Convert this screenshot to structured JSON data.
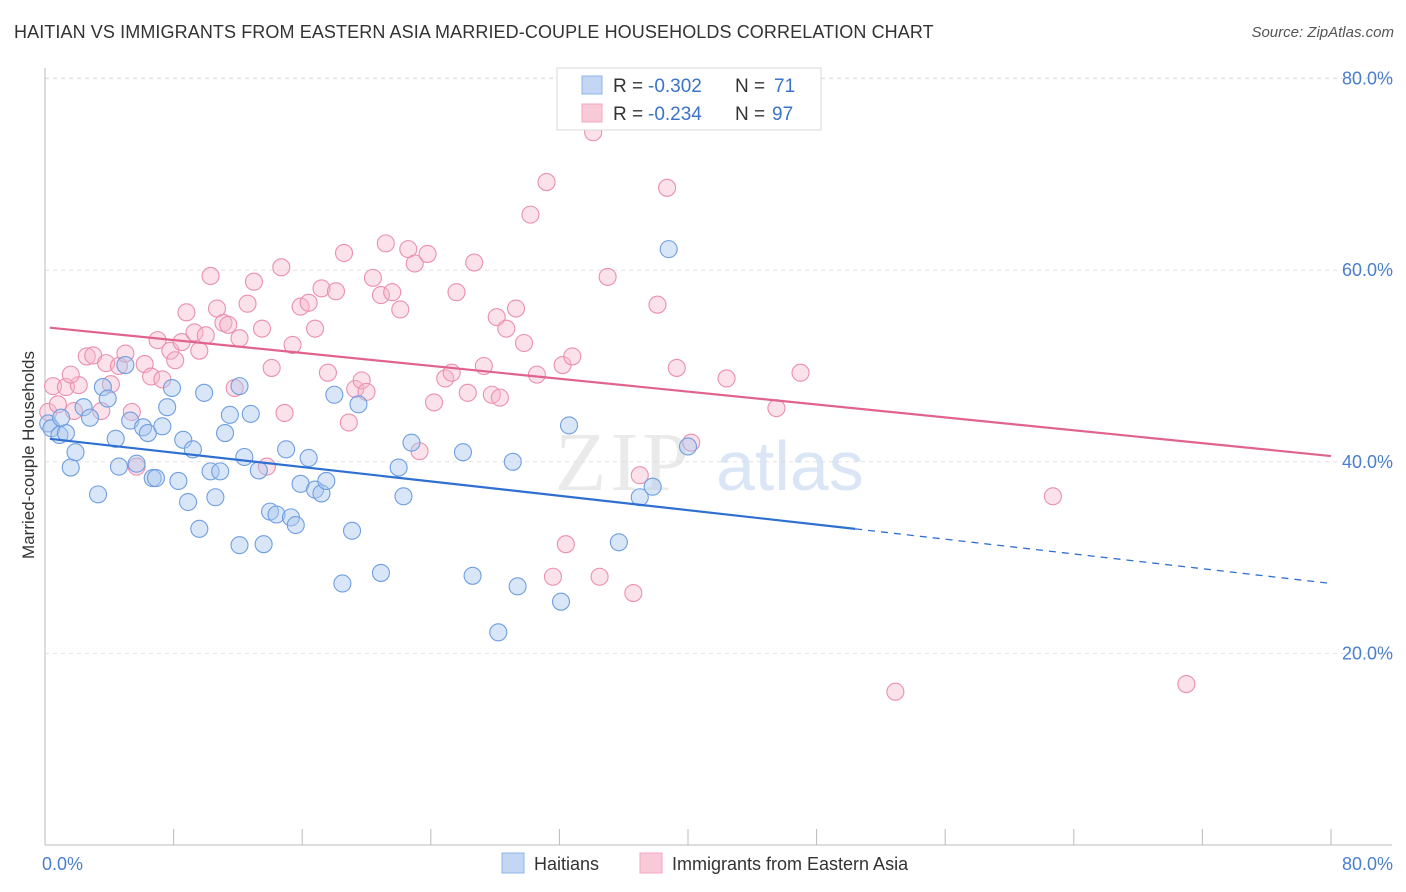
{
  "title": "HAITIAN VS IMMIGRANTS FROM EASTERN ASIA MARRIED-COUPLE HOUSEHOLDS CORRELATION CHART",
  "source": "Source: ZipAtlas.com",
  "watermark": {
    "zip": "ZIP",
    "atlas": "atlas"
  },
  "colors": {
    "blue": "#8fb4ea",
    "blue_line": "#2e6fd1",
    "pink": "#f3a7bf",
    "pink_line": "#e0638f",
    "axis_text": "#4a7fd0"
  },
  "legend": {
    "rows": [
      {
        "r_label": "R = ",
        "r_value": "-0.302",
        "n_label": "N = ",
        "n_value": "71"
      },
      {
        "r_label": "R = ",
        "r_value": "-0.234",
        "n_label": "N = ",
        "n_value": "97"
      }
    ]
  },
  "chart_data": {
    "type": "scatter",
    "title": "HAITIAN VS IMMIGRANTS FROM EASTERN ASIA MARRIED-COUPLE HOUSEHOLDS CORRELATION CHART",
    "xlabel": "",
    "ylabel": "Married-couple Households",
    "xlim": [
      0,
      80
    ],
    "ylim": [
      0,
      85
    ],
    "x_tick_labels": [
      "0.0%",
      "80.0%"
    ],
    "y_ticks": [
      20,
      40,
      60,
      80
    ],
    "y_tick_labels": [
      "20.0%",
      "40.0%",
      "60.0%",
      "80.0%"
    ],
    "grid": true,
    "legend_position": "bottom",
    "series": [
      {
        "name": "Haitians",
        "color": "#8fb4ea",
        "stats": {
          "R": -0.302,
          "N": 71
        },
        "trend": {
          "x0": 0.3,
          "y0": 42.4,
          "x1": 50.4,
          "y1": 33.0,
          "dash_x_end": 80.0,
          "dash_y_end": 27.3
        },
        "points": [
          [
            0.2,
            44.0
          ],
          [
            0.4,
            43.5
          ],
          [
            0.9,
            42.8
          ],
          [
            1.3,
            43.0
          ],
          [
            1.6,
            39.4
          ],
          [
            1.9,
            41.0
          ],
          [
            2.4,
            45.7
          ],
          [
            2.8,
            44.6
          ],
          [
            3.3,
            36.6
          ],
          [
            3.6,
            47.8
          ],
          [
            3.9,
            46.6
          ],
          [
            4.4,
            42.4
          ],
          [
            4.6,
            39.5
          ],
          [
            5.0,
            50.1
          ],
          [
            5.3,
            44.3
          ],
          [
            5.7,
            39.8
          ],
          [
            6.1,
            43.6
          ],
          [
            6.4,
            43.0
          ],
          [
            6.7,
            38.3
          ],
          [
            6.9,
            38.3
          ],
          [
            7.3,
            43.7
          ],
          [
            7.6,
            45.7
          ],
          [
            7.9,
            47.7
          ],
          [
            8.3,
            38.0
          ],
          [
            8.6,
            42.3
          ],
          [
            8.9,
            35.8
          ],
          [
            9.2,
            41.3
          ],
          [
            9.6,
            33.0
          ],
          [
            9.9,
            47.2
          ],
          [
            10.3,
            39.0
          ],
          [
            10.6,
            36.3
          ],
          [
            10.9,
            39.0
          ],
          [
            11.2,
            43.0
          ],
          [
            11.5,
            44.9
          ],
          [
            12.1,
            31.3
          ],
          [
            12.4,
            40.5
          ],
          [
            12.8,
            45.0
          ],
          [
            13.3,
            39.1
          ],
          [
            13.6,
            31.4
          ],
          [
            14.0,
            34.8
          ],
          [
            14.4,
            34.5
          ],
          [
            15.0,
            41.3
          ],
          [
            15.3,
            34.2
          ],
          [
            15.6,
            33.4
          ],
          [
            15.9,
            37.7
          ],
          [
            16.4,
            40.4
          ],
          [
            16.8,
            37.1
          ],
          [
            17.2,
            36.7
          ],
          [
            17.5,
            38.0
          ],
          [
            18.0,
            47.0
          ],
          [
            18.5,
            27.3
          ],
          [
            19.1,
            32.8
          ],
          [
            19.5,
            46.0
          ],
          [
            20.9,
            28.4
          ],
          [
            22.0,
            39.4
          ],
          [
            22.3,
            36.4
          ],
          [
            22.8,
            42.0
          ],
          [
            26.0,
            41.0
          ],
          [
            26.6,
            28.1
          ],
          [
            28.2,
            22.2
          ],
          [
            29.1,
            40.0
          ],
          [
            29.4,
            27.0
          ],
          [
            32.1,
            25.4
          ],
          [
            32.6,
            43.8
          ],
          [
            35.7,
            31.6
          ],
          [
            37.0,
            36.3
          ],
          [
            37.8,
            37.4
          ],
          [
            38.8,
            62.2
          ],
          [
            40.0,
            41.6
          ],
          [
            12.1,
            47.9
          ],
          [
            1.0,
            44.6
          ]
        ]
      },
      {
        "name": "Immigrants from Eastern Asia",
        "color": "#f3a7bf",
        "stats": {
          "R": -0.234,
          "N": 97
        },
        "trend": {
          "x0": 0.3,
          "y0": 54.0,
          "x1": 80.0,
          "y1": 40.6
        },
        "points": [
          [
            0.2,
            45.2
          ],
          [
            0.5,
            47.9
          ],
          [
            0.8,
            46.0
          ],
          [
            1.3,
            47.8
          ],
          [
            1.8,
            45.3
          ],
          [
            2.1,
            48.0
          ],
          [
            2.6,
            51.0
          ],
          [
            3.0,
            51.1
          ],
          [
            3.5,
            45.3
          ],
          [
            3.8,
            50.3
          ],
          [
            4.1,
            48.1
          ],
          [
            4.6,
            50.0
          ],
          [
            5.0,
            51.3
          ],
          [
            5.4,
            45.2
          ],
          [
            5.7,
            39.5
          ],
          [
            6.2,
            50.2
          ],
          [
            6.6,
            48.9
          ],
          [
            7.0,
            52.7
          ],
          [
            7.3,
            48.6
          ],
          [
            7.8,
            51.6
          ],
          [
            8.1,
            50.6
          ],
          [
            8.5,
            52.5
          ],
          [
            8.8,
            55.6
          ],
          [
            9.3,
            53.5
          ],
          [
            9.6,
            51.6
          ],
          [
            10.0,
            53.2
          ],
          [
            10.3,
            59.4
          ],
          [
            10.7,
            56.0
          ],
          [
            11.1,
            54.5
          ],
          [
            11.4,
            54.3
          ],
          [
            11.8,
            47.7
          ],
          [
            12.1,
            52.9
          ],
          [
            12.6,
            56.5
          ],
          [
            13.0,
            58.8
          ],
          [
            13.5,
            53.9
          ],
          [
            13.8,
            39.5
          ],
          [
            14.1,
            49.8
          ],
          [
            14.7,
            60.3
          ],
          [
            14.9,
            45.1
          ],
          [
            15.4,
            52.2
          ],
          [
            15.9,
            56.2
          ],
          [
            16.4,
            56.6
          ],
          [
            16.8,
            53.9
          ],
          [
            17.2,
            58.1
          ],
          [
            17.6,
            49.3
          ],
          [
            18.1,
            57.8
          ],
          [
            18.6,
            61.8
          ],
          [
            18.9,
            44.1
          ],
          [
            19.3,
            47.6
          ],
          [
            19.7,
            48.5
          ],
          [
            20.0,
            47.3
          ],
          [
            20.4,
            59.2
          ],
          [
            20.9,
            57.4
          ],
          [
            21.2,
            62.8
          ],
          [
            21.6,
            57.7
          ],
          [
            22.1,
            55.9
          ],
          [
            22.6,
            62.2
          ],
          [
            23.0,
            60.7
          ],
          [
            23.3,
            41.1
          ],
          [
            23.8,
            61.7
          ],
          [
            24.2,
            46.2
          ],
          [
            24.9,
            48.7
          ],
          [
            25.3,
            49.3
          ],
          [
            25.6,
            57.7
          ],
          [
            26.3,
            47.2
          ],
          [
            26.7,
            60.8
          ],
          [
            27.3,
            50.0
          ],
          [
            27.8,
            47.0
          ],
          [
            28.1,
            55.1
          ],
          [
            28.3,
            46.7
          ],
          [
            28.7,
            53.9
          ],
          [
            29.3,
            56.0
          ],
          [
            29.8,
            52.4
          ],
          [
            30.2,
            65.8
          ],
          [
            30.6,
            49.1
          ],
          [
            31.2,
            69.2
          ],
          [
            31.6,
            28.0
          ],
          [
            32.2,
            50.1
          ],
          [
            32.4,
            31.4
          ],
          [
            32.8,
            51.0
          ],
          [
            34.1,
            74.4
          ],
          [
            34.5,
            28.0
          ],
          [
            35.0,
            59.3
          ],
          [
            36.6,
            26.3
          ],
          [
            37.0,
            38.6
          ],
          [
            38.1,
            56.4
          ],
          [
            38.7,
            68.6
          ],
          [
            39.3,
            49.8
          ],
          [
            40.2,
            42.0
          ],
          [
            42.4,
            48.7
          ],
          [
            45.5,
            45.6
          ],
          [
            47.0,
            49.3
          ],
          [
            52.9,
            16.0
          ],
          [
            62.7,
            36.4
          ],
          [
            71.0,
            16.8
          ],
          [
            39.8,
            79.0
          ],
          [
            1.6,
            49.1
          ]
        ]
      }
    ]
  }
}
